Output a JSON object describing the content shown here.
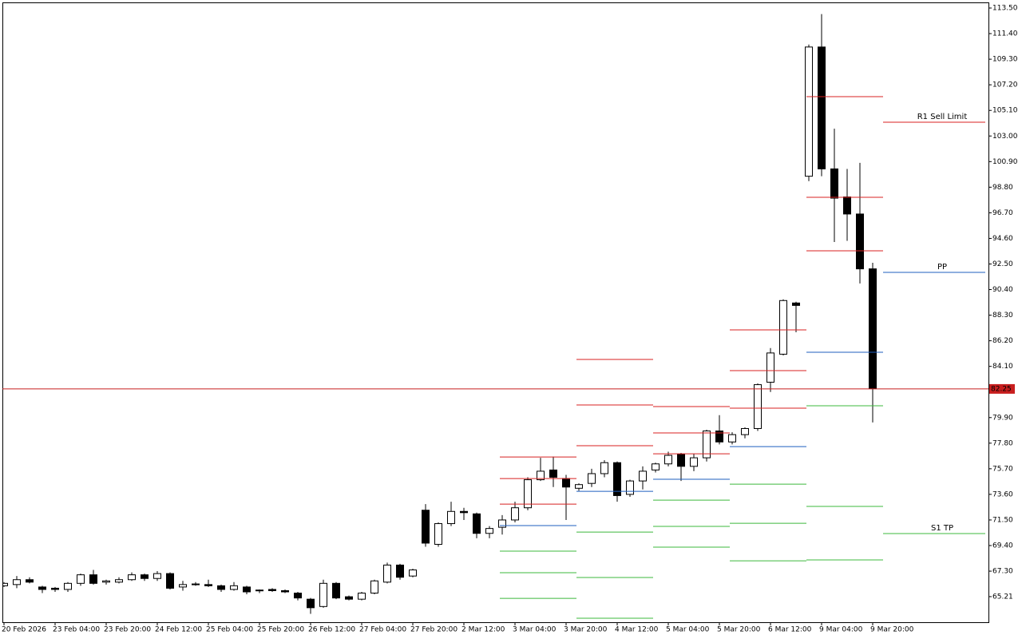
{
  "chart_data": {
    "type": "candlestick",
    "categories": [
      "20 Feb 2026",
      null,
      null,
      null,
      "23 Feb 04:00",
      null,
      null,
      null,
      "23 Feb 20:00",
      null,
      null,
      null,
      "24 Feb 12:00",
      null,
      null,
      null,
      "25 Feb 04:00",
      null,
      null,
      null,
      "25 Feb 20:00",
      null,
      null,
      null,
      "26 Feb 12:00",
      null,
      null,
      null,
      "27 Feb 04:00",
      null,
      null,
      null,
      "27 Feb 20:00",
      null,
      null,
      null,
      "2 Mar 12:00",
      null,
      null,
      null,
      "3 Mar 04:00",
      null,
      null,
      null,
      "3 Mar 20:00",
      null,
      null,
      null,
      "4 Mar 12:00",
      null,
      null,
      null,
      "5 Mar 04:00",
      null,
      null,
      null,
      "5 Mar 20:00",
      null,
      null,
      null,
      "6 Mar 12:00",
      null,
      null,
      null,
      "9 Mar 04:00",
      null,
      null,
      null,
      "9 Mar 20:00"
    ],
    "open": [
      66.1,
      66.2,
      66.6,
      66.0,
      65.9,
      65.8,
      66.3,
      67.0,
      66.4,
      66.4,
      66.6,
      67.0,
      66.7,
      67.1,
      66.0,
      66.2,
      66.2,
      66.1,
      65.8,
      66.0,
      65.7,
      65.8,
      65.7,
      65.5,
      65.0,
      64.4,
      66.3,
      65.2,
      65.0,
      65.5,
      66.4,
      67.8,
      66.9,
      72.3,
      69.5,
      71.2,
      72.2,
      72.0,
      70.4,
      70.9,
      71.5,
      72.5,
      74.8,
      75.6,
      74.9,
      74.1,
      74.5,
      75.3,
      76.2,
      73.6,
      74.7,
      75.6,
      76.1,
      76.9,
      75.9,
      76.6,
      78.8,
      77.9,
      78.5,
      79.0,
      82.8,
      85.1,
      89.3,
      99.7,
      110.3,
      100.3,
      98.0,
      96.6,
      92.1
    ],
    "high": [
      66.4,
      66.9,
      66.8,
      66.1,
      66.0,
      66.4,
      67.1,
      67.4,
      66.6,
      66.8,
      67.2,
      67.1,
      67.3,
      67.2,
      66.5,
      66.4,
      66.6,
      66.2,
      66.4,
      66.1,
      65.8,
      65.9,
      65.8,
      65.6,
      65.1,
      66.6,
      66.4,
      65.3,
      65.6,
      66.6,
      68.0,
      67.9,
      67.5,
      72.8,
      71.3,
      73.0,
      72.5,
      72.1,
      71.0,
      71.9,
      73.0,
      75.0,
      76.6,
      76.7,
      75.2,
      74.5,
      75.7,
      76.4,
      76.3,
      74.8,
      75.9,
      76.2,
      77.1,
      77.0,
      76.9,
      78.9,
      80.1,
      78.7,
      79.1,
      82.7,
      85.6,
      89.6,
      89.4,
      110.5,
      113.0,
      103.6,
      100.3,
      100.8,
      92.6
    ],
    "low": [
      66.0,
      65.9,
      66.3,
      65.5,
      65.6,
      65.6,
      66.1,
      66.2,
      66.2,
      66.3,
      66.5,
      66.5,
      66.5,
      65.8,
      65.7,
      66.1,
      66.0,
      65.6,
      65.7,
      65.4,
      65.5,
      65.6,
      65.5,
      64.9,
      63.8,
      64.3,
      65.0,
      64.9,
      64.9,
      65.4,
      66.3,
      66.6,
      66.8,
      69.3,
      69.3,
      71.0,
      71.5,
      70.0,
      70.0,
      70.3,
      71.3,
      72.3,
      74.7,
      74.2,
      71.5,
      73.9,
      74.2,
      75.0,
      73.0,
      73.4,
      74.0,
      75.4,
      75.9,
      74.7,
      75.5,
      76.3,
      77.7,
      77.7,
      78.2,
      78.8,
      82.0,
      85.0,
      86.9,
      99.3,
      99.7,
      94.3,
      94.4,
      90.9,
      79.5
    ],
    "close": [
      66.3,
      66.6,
      66.4,
      65.8,
      65.8,
      66.3,
      67.0,
      66.3,
      66.5,
      66.6,
      67.0,
      66.7,
      67.1,
      65.9,
      66.2,
      66.25,
      66.1,
      65.8,
      66.1,
      65.6,
      65.75,
      65.7,
      65.6,
      65.1,
      64.3,
      66.3,
      65.1,
      65.0,
      65.5,
      66.5,
      67.8,
      66.8,
      67.4,
      69.6,
      71.2,
      72.2,
      72.1,
      70.4,
      70.8,
      71.5,
      72.5,
      74.8,
      75.5,
      75.0,
      74.2,
      74.4,
      75.3,
      76.2,
      73.5,
      74.7,
      75.5,
      76.1,
      76.8,
      75.9,
      76.6,
      78.8,
      77.9,
      78.5,
      79.0,
      82.6,
      85.2,
      89.5,
      89.1,
      110.3,
      100.3,
      97.9,
      96.6,
      92.1,
      82.3
    ],
    "up_color": "#ffffff",
    "down_color": "#000000",
    "current_price": 82.25,
    "current_price_color": "#c81e1e",
    "resistance_color": "#d82020",
    "pivot_color": "#1f5fbf",
    "support_color": "#3cb83c",
    "pivot_groups": [
      {
        "resistance": [
          76.67,
          74.9,
          72.8
        ],
        "pp": 71.04,
        "support": [
          68.94,
          67.17,
          65.07
        ]
      },
      {
        "resistance": [
          84.67,
          80.93,
          77.59
        ],
        "pp": 73.85,
        "support": [
          70.51,
          66.78,
          63.44
        ]
      },
      {
        "resistance": [
          80.8,
          78.64,
          76.93
        ],
        "pp": 74.84,
        "support": [
          73.13,
          70.97,
          69.27
        ]
      },
      {
        "resistance": [
          87.09,
          83.75,
          80.67
        ],
        "pp": 77.52,
        "support": [
          74.44,
          71.23,
          68.15
        ]
      },
      {
        "resistance": [
          106.23,
          97.97,
          93.58
        ],
        "pp": 85.26,
        "support": [
          80.87,
          72.61,
          68.22
        ]
      }
    ],
    "next_levels": [
      {
        "label": "R1 Sell Limit",
        "value": 104.13,
        "kind": "resistance"
      },
      {
        "label": "PP",
        "value": 91.81,
        "kind": "pivot"
      },
      {
        "label": "S1 TP",
        "value": 70.38,
        "kind": "support"
      }
    ],
    "ylim": [
      63.11,
      113.96
    ],
    "yticks": [
      {
        "value": 113.5,
        "label": "113.50"
      },
      {
        "value": 111.4,
        "label": "111.40"
      },
      {
        "value": 109.3,
        "label": "109.30"
      },
      {
        "value": 107.2,
        "label": "107.20"
      },
      {
        "value": 105.1,
        "label": "105.10"
      },
      {
        "value": 103,
        "label": "103.00"
      },
      {
        "value": 100.9,
        "label": "100.90"
      },
      {
        "value": 98.8,
        "label": "98.80"
      },
      {
        "value": 96.7,
        "label": "96.70"
      },
      {
        "value": 94.6,
        "label": "94.60"
      },
      {
        "value": 92.5,
        "label": "92.50"
      },
      {
        "value": 90.4,
        "label": "90.40"
      },
      {
        "value": 88.3,
        "label": "88.30"
      },
      {
        "value": 86.2,
        "label": "86.20"
      },
      {
        "value": 84.1,
        "label": "84.10"
      },
      {
        "value": 79.9,
        "label": "79.90"
      },
      {
        "value": 77.8,
        "label": "77.80"
      },
      {
        "value": 75.7,
        "label": "75.70"
      },
      {
        "value": 73.6,
        "label": "73.60"
      },
      {
        "value": 71.5,
        "label": "71.50"
      },
      {
        "value": 69.4,
        "label": "69.40"
      },
      {
        "value": 67.3,
        "label": "67.30"
      },
      {
        "value": 65.21,
        "label": "65.21"
      }
    ],
    "pivot_start_index": 39,
    "candles_per_day": 6
  }
}
